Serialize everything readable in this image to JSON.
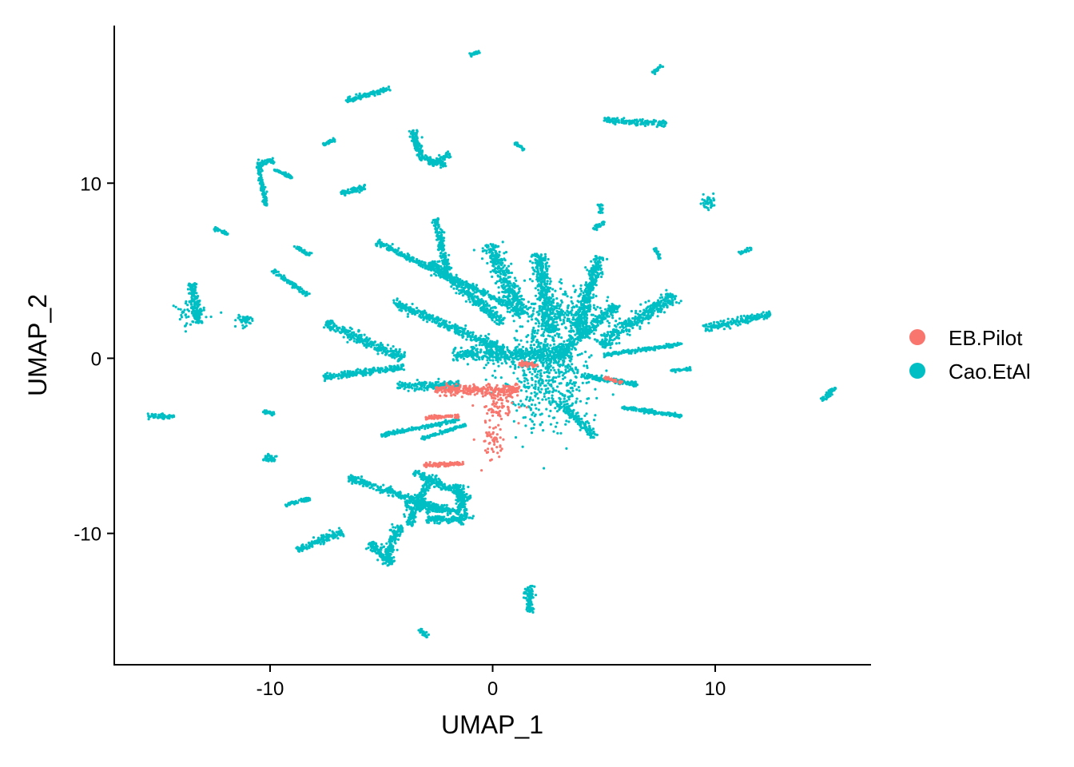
{
  "chart_data": {
    "type": "scatter",
    "title": "",
    "xlabel": "UMAP_1",
    "ylabel": "UMAP_2",
    "xlim": [
      -17,
      17
    ],
    "ylim": [
      -17.5,
      19
    ],
    "x_ticks": [
      -10,
      0,
      10
    ],
    "x_tick_labels": [
      "-10",
      "0",
      "10"
    ],
    "y_ticks": [
      -10,
      0,
      10
    ],
    "y_tick_labels": [
      "-10",
      "0",
      "10"
    ],
    "grid": false,
    "legend_position": "right",
    "legend": [
      {
        "name": "EB.Pilot",
        "color": "#F8766D"
      },
      {
        "name": "Cao.EtAl",
        "color": "#00BFC4"
      }
    ],
    "clusters": [
      {
        "series": "Cao.EtAl",
        "shape": "blob",
        "center": [
          2.5,
          -0.5
        ],
        "spread": [
          1.8,
          3.2
        ]
      },
      {
        "series": "Cao.EtAl",
        "shape": "blob",
        "center": [
          3.2,
          2.8
        ],
        "spread": [
          1.6,
          1.2
        ]
      },
      {
        "series": "Cao.EtAl",
        "shape": "line",
        "from": [
          -1.8,
          0.2
        ],
        "to": [
          3.5,
          0.2
        ],
        "width": 0.6
      },
      {
        "series": "Cao.EtAl",
        "shape": "line",
        "from": [
          -5.2,
          6.6
        ],
        "to": [
          0.8,
          3.0
        ],
        "width": 0.25
      },
      {
        "series": "Cao.EtAl",
        "shape": "line",
        "from": [
          -4.5,
          3.2
        ],
        "to": [
          0.5,
          0.5
        ],
        "width": 0.35
      },
      {
        "series": "Cao.EtAl",
        "shape": "line",
        "from": [
          -2.6,
          8.0
        ],
        "to": [
          -2.0,
          5.0
        ],
        "width": 0.25
      },
      {
        "series": "Cao.EtAl",
        "shape": "line",
        "from": [
          -2.8,
          5.5
        ],
        "to": [
          0.5,
          2.0
        ],
        "width": 0.35
      },
      {
        "series": "Cao.EtAl",
        "shape": "line",
        "from": [
          -0.2,
          6.5
        ],
        "to": [
          1.3,
          2.5
        ],
        "width": 0.6
      },
      {
        "series": "Cao.EtAl",
        "shape": "line",
        "from": [
          2.1,
          6.0
        ],
        "to": [
          2.6,
          1.5
        ],
        "width": 0.5
      },
      {
        "series": "Cao.EtAl",
        "shape": "line",
        "from": [
          4.8,
          5.8
        ],
        "to": [
          3.8,
          1.5
        ],
        "width": 0.45
      },
      {
        "series": "Cao.EtAl",
        "shape": "line",
        "from": [
          5.6,
          3.0
        ],
        "to": [
          3.0,
          0.3
        ],
        "width": 0.4
      },
      {
        "series": "Cao.EtAl",
        "shape": "line",
        "from": [
          8.2,
          3.6
        ],
        "to": [
          4.8,
          0.8
        ],
        "width": 0.55
      },
      {
        "series": "Cao.EtAl",
        "shape": "line",
        "from": [
          8.5,
          0.8
        ],
        "to": [
          5.0,
          0.2
        ],
        "width": 0.15
      },
      {
        "series": "Cao.EtAl",
        "shape": "line",
        "from": [
          6.5,
          -1.5
        ],
        "to": [
          4.0,
          -1.0
        ],
        "width": 0.2
      },
      {
        "series": "Cao.EtAl",
        "shape": "line",
        "from": [
          8.5,
          -3.3
        ],
        "to": [
          5.8,
          -2.8
        ],
        "width": 0.15
      },
      {
        "series": "Cao.EtAl",
        "shape": "line",
        "from": [
          4.6,
          -4.5
        ],
        "to": [
          3.0,
          -2.5
        ],
        "width": 0.3
      },
      {
        "series": "Cao.EtAl",
        "shape": "line",
        "from": [
          -7.5,
          2.0
        ],
        "to": [
          -4.0,
          0.0
        ],
        "width": 0.4
      },
      {
        "series": "Cao.EtAl",
        "shape": "line",
        "from": [
          -7.6,
          -1.1
        ],
        "to": [
          -4.0,
          -0.5
        ],
        "width": 0.25
      },
      {
        "series": "Cao.EtAl",
        "shape": "line",
        "from": [
          -4.3,
          -1.6
        ],
        "to": [
          -1.5,
          -1.5
        ],
        "width": 0.3
      },
      {
        "series": "Cao.EtAl",
        "shape": "line",
        "from": [
          -5.0,
          -4.4
        ],
        "to": [
          -1.5,
          -3.5
        ],
        "width": 0.15
      },
      {
        "series": "Cao.EtAl",
        "shape": "line",
        "from": [
          -3.2,
          -4.6
        ],
        "to": [
          -1.2,
          -3.8
        ],
        "width": 0.12
      },
      {
        "series": "Cao.EtAl",
        "shape": "line",
        "from": [
          -6.5,
          -6.8
        ],
        "to": [
          -2.5,
          -8.5
        ],
        "width": 0.3
      },
      {
        "series": "Cao.EtAl",
        "shape": "line",
        "from": [
          -4.0,
          -8.3
        ],
        "to": [
          -1.5,
          -8.8
        ],
        "width": 0.4
      },
      {
        "series": "Cao.EtAl",
        "shape": "line",
        "from": [
          -3.5,
          -6.5
        ],
        "to": [
          -1.0,
          -8.0
        ],
        "width": 0.3
      },
      {
        "series": "Cao.EtAl",
        "shape": "line",
        "from": [
          -1.6,
          -7.2
        ],
        "to": [
          -1.2,
          -9.2
        ],
        "width": 0.35
      },
      {
        "series": "Cao.EtAl",
        "shape": "line",
        "from": [
          -3.0,
          -9.2
        ],
        "to": [
          -1.2,
          -9.2
        ],
        "width": 0.3
      },
      {
        "series": "Cao.EtAl",
        "shape": "line",
        "from": [
          -4.2,
          -9.5
        ],
        "to": [
          -4.8,
          -11.5
        ],
        "width": 0.35
      },
      {
        "series": "Cao.EtAl",
        "shape": "line",
        "from": [
          -5.5,
          -10.5
        ],
        "to": [
          -4.5,
          -11.8
        ],
        "width": 0.4
      },
      {
        "series": "Cao.EtAl",
        "shape": "line",
        "from": [
          -3.8,
          -9.5
        ],
        "to": [
          -2.8,
          -6.8
        ],
        "width": 0.3
      },
      {
        "series": "Cao.EtAl",
        "shape": "line",
        "from": [
          -3.6,
          13.0
        ],
        "to": [
          -3.2,
          11.4
        ],
        "width": 0.3
      },
      {
        "series": "Cao.EtAl",
        "shape": "line",
        "from": [
          -3.3,
          11.5
        ],
        "to": [
          -2.1,
          11.0
        ],
        "width": 0.2
      },
      {
        "series": "Cao.EtAl",
        "shape": "line",
        "from": [
          -2.8,
          11.0
        ],
        "to": [
          -1.9,
          11.7
        ],
        "width": 0.2
      },
      {
        "series": "Cao.EtAl",
        "shape": "line",
        "from": [
          -6.6,
          14.7
        ],
        "to": [
          -4.6,
          15.4
        ],
        "width": 0.2
      },
      {
        "series": "Cao.EtAl",
        "shape": "line",
        "from": [
          -7.6,
          12.2
        ],
        "to": [
          -7.1,
          12.5
        ],
        "width": 0.15
      },
      {
        "series": "Cao.EtAl",
        "shape": "line",
        "from": [
          -6.8,
          9.4
        ],
        "to": [
          -5.7,
          9.8
        ],
        "width": 0.25
      },
      {
        "series": "Cao.EtAl",
        "shape": "line",
        "from": [
          -10.6,
          11.1
        ],
        "to": [
          -9.8,
          11.3
        ],
        "width": 0.25
      },
      {
        "series": "Cao.EtAl",
        "shape": "line",
        "from": [
          -10.5,
          11.0
        ],
        "to": [
          -10.2,
          8.7
        ],
        "width": 0.15
      },
      {
        "series": "Cao.EtAl",
        "shape": "line",
        "from": [
          -9.8,
          10.8
        ],
        "to": [
          -9.0,
          10.3
        ],
        "width": 0.12
      },
      {
        "series": "Cao.EtAl",
        "shape": "line",
        "from": [
          -12.5,
          7.4
        ],
        "to": [
          -11.9,
          7.1
        ],
        "width": 0.15
      },
      {
        "series": "Cao.EtAl",
        "shape": "line",
        "from": [
          -8.9,
          6.4
        ],
        "to": [
          -8.2,
          5.9
        ],
        "width": 0.15
      },
      {
        "series": "Cao.EtAl",
        "shape": "line",
        "from": [
          -9.9,
          5.0
        ],
        "to": [
          -8.3,
          3.6
        ],
        "width": 0.15
      },
      {
        "series": "Cao.EtAl",
        "shape": "blob",
        "center": [
          -13.6,
          2.6
        ],
        "spread": [
          0.7,
          0.8
        ]
      },
      {
        "series": "Cao.EtAl",
        "shape": "line",
        "from": [
          -13.5,
          4.3
        ],
        "to": [
          -13.2,
          2.0
        ],
        "width": 0.3
      },
      {
        "series": "Cao.EtAl",
        "shape": "blob",
        "center": [
          -11.1,
          2.1
        ],
        "spread": [
          0.35,
          0.3
        ]
      },
      {
        "series": "Cao.EtAl",
        "shape": "line",
        "from": [
          -15.5,
          -3.3
        ],
        "to": [
          -14.3,
          -3.3
        ],
        "width": 0.2
      },
      {
        "series": "Cao.EtAl",
        "shape": "line",
        "from": [
          -10.3,
          -3.0
        ],
        "to": [
          -9.8,
          -3.2
        ],
        "width": 0.15
      },
      {
        "series": "Cao.EtAl",
        "shape": "blob",
        "center": [
          -10.0,
          -5.7
        ],
        "spread": [
          0.3,
          0.2
        ]
      },
      {
        "series": "Cao.EtAl",
        "shape": "line",
        "from": [
          -9.3,
          -8.4
        ],
        "to": [
          -8.2,
          -8.0
        ],
        "width": 0.15
      },
      {
        "series": "Cao.EtAl",
        "shape": "line",
        "from": [
          -8.8,
          -10.9
        ],
        "to": [
          -6.7,
          -9.9
        ],
        "width": 0.3
      },
      {
        "series": "Cao.EtAl",
        "shape": "line",
        "from": [
          1.6,
          -13.0
        ],
        "to": [
          1.7,
          -14.7
        ],
        "width": 0.3
      },
      {
        "series": "Cao.EtAl",
        "shape": "line",
        "from": [
          -3.3,
          -15.5
        ],
        "to": [
          -2.9,
          -15.9
        ],
        "width": 0.15
      },
      {
        "series": "Cao.EtAl",
        "shape": "line",
        "from": [
          -1.0,
          17.3
        ],
        "to": [
          -0.6,
          17.5
        ],
        "width": 0.1
      },
      {
        "series": "Cao.EtAl",
        "shape": "line",
        "from": [
          1.0,
          12.3
        ],
        "to": [
          1.4,
          11.9
        ],
        "width": 0.1
      },
      {
        "series": "Cao.EtAl",
        "shape": "line",
        "from": [
          4.8,
          8.8
        ],
        "to": [
          4.9,
          8.3
        ],
        "width": 0.15
      },
      {
        "series": "Cao.EtAl",
        "shape": "line",
        "from": [
          5.0,
          7.8
        ],
        "to": [
          4.5,
          7.3
        ],
        "width": 0.15
      },
      {
        "series": "Cao.EtAl",
        "shape": "line",
        "from": [
          5.0,
          13.6
        ],
        "to": [
          7.8,
          13.4
        ],
        "width": 0.25
      },
      {
        "series": "Cao.EtAl",
        "shape": "line",
        "from": [
          7.2,
          16.3
        ],
        "to": [
          7.6,
          16.7
        ],
        "width": 0.15
      },
      {
        "series": "Cao.EtAl",
        "shape": "blob",
        "center": [
          9.7,
          8.9
        ],
        "spread": [
          0.25,
          0.4
        ]
      },
      {
        "series": "Cao.EtAl",
        "shape": "line",
        "from": [
          7.3,
          6.3
        ],
        "to": [
          7.5,
          5.7
        ],
        "width": 0.12
      },
      {
        "series": "Cao.EtAl",
        "shape": "line",
        "from": [
          11.1,
          6.0
        ],
        "to": [
          11.6,
          6.3
        ],
        "width": 0.12
      },
      {
        "series": "Cao.EtAl",
        "shape": "line",
        "from": [
          9.5,
          1.7
        ],
        "to": [
          12.5,
          2.5
        ],
        "width": 0.3
      },
      {
        "series": "Cao.EtAl",
        "shape": "line",
        "from": [
          14.8,
          -2.4
        ],
        "to": [
          15.4,
          -1.7
        ],
        "width": 0.2
      },
      {
        "series": "Cao.EtAl",
        "shape": "line",
        "from": [
          8.0,
          -0.7
        ],
        "to": [
          8.9,
          -0.6
        ],
        "width": 0.12
      },
      {
        "series": "EB.Pilot",
        "shape": "blob",
        "center": [
          0.2,
          -2.6
        ],
        "spread": [
          0.9,
          0.9
        ]
      },
      {
        "series": "EB.Pilot",
        "shape": "blob",
        "center": [
          0.0,
          -4.8
        ],
        "spread": [
          0.5,
          0.9
        ]
      },
      {
        "series": "EB.Pilot",
        "shape": "line",
        "from": [
          -2.6,
          -1.8
        ],
        "to": [
          1.2,
          -1.8
        ],
        "width": 0.4
      },
      {
        "series": "EB.Pilot",
        "shape": "line",
        "from": [
          -3.1,
          -6.1
        ],
        "to": [
          -1.3,
          -6.0
        ],
        "width": 0.15
      },
      {
        "series": "EB.Pilot",
        "shape": "line",
        "from": [
          -3.0,
          -3.4
        ],
        "to": [
          -1.5,
          -3.3
        ],
        "width": 0.12
      },
      {
        "series": "EB.Pilot",
        "shape": "line",
        "from": [
          1.2,
          -0.3
        ],
        "to": [
          2.0,
          -0.4
        ],
        "width": 0.2
      },
      {
        "series": "EB.Pilot",
        "shape": "line",
        "from": [
          5.0,
          -1.1
        ],
        "to": [
          5.8,
          -1.4
        ],
        "width": 0.1
      }
    ]
  }
}
